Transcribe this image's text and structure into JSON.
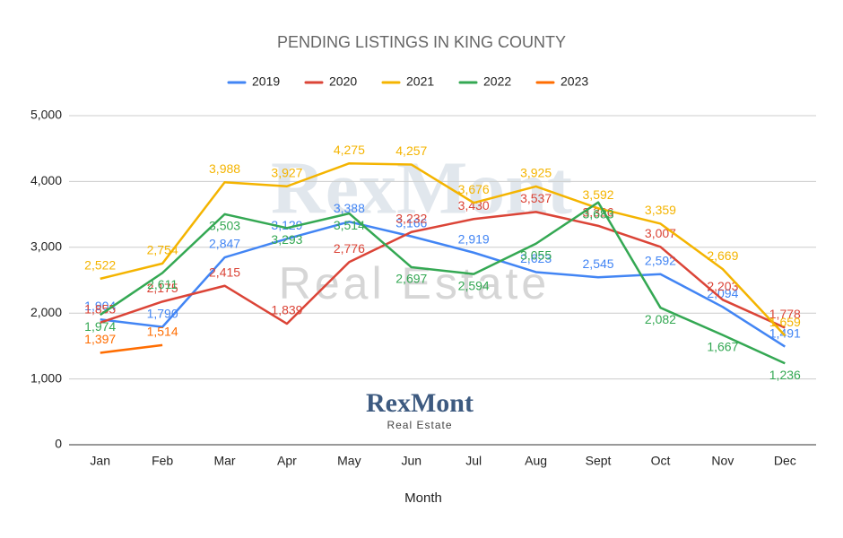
{
  "chart_data": {
    "type": "line",
    "title": "PENDING LISTINGS IN KING COUNTY",
    "x_label": "Month",
    "watermark": {
      "name": "RexMont",
      "tagline": "Real Estate"
    },
    "logo": {
      "name": "RexMont",
      "tagline": "Real Estate"
    },
    "categories": [
      "Jan",
      "Feb",
      "Mar",
      "Apr",
      "May",
      "Jun",
      "Jul",
      "Aug",
      "Sept",
      "Oct",
      "Nov",
      "Dec"
    ],
    "series": [
      {
        "name": "2019",
        "color": "#4285f4",
        "values": [
          1904,
          1790,
          2847,
          3129,
          3388,
          3166,
          2919,
          2623,
          2545,
          2592,
          2094,
          1491
        ],
        "value_labels": [
          "1,904",
          "1,790",
          "2,847",
          "3,129",
          "3,388",
          "3,166",
          "2,919",
          "2,623",
          "2,545",
          "2,592",
          "2,094",
          "1,491"
        ]
      },
      {
        "name": "2020",
        "color": "#db4437",
        "values": [
          1855,
          2175,
          2415,
          1839,
          2776,
          3232,
          3430,
          3537,
          3326,
          3007,
          2203,
          1778
        ],
        "value_labels": [
          "1,855",
          "2,175",
          "2,415",
          "1,839",
          "2,776",
          "3,232",
          "3,430",
          "3,537",
          "3,326",
          "3,007",
          "2,203",
          "1,778"
        ]
      },
      {
        "name": "2021",
        "color": "#f4b400",
        "values": [
          2522,
          2754,
          3988,
          3927,
          4275,
          4257,
          3676,
          3925,
          3592,
          3359,
          2669,
          1659
        ],
        "value_labels": [
          "2,522",
          "2,754",
          "3,988",
          "3,927",
          "4,275",
          "4,257",
          "3,676",
          "3,925",
          "3,592",
          "3,359",
          "2,669",
          "1,659"
        ]
      },
      {
        "name": "2022",
        "color": "#34a853",
        "values": [
          1974,
          2611,
          3503,
          3293,
          3514,
          2697,
          2594,
          3055,
          3683,
          2082,
          1667,
          1236
        ],
        "value_labels": [
          "1,974",
          "2,611",
          "3,503",
          "3,293",
          "3,514",
          "2,697",
          "2,594",
          "3,055",
          "3,683",
          "2,082",
          "1,667",
          "1,236"
        ]
      },
      {
        "name": "2023",
        "color": "#ff6d01",
        "values": [
          1397,
          1514,
          null,
          null,
          null,
          null,
          null,
          null,
          null,
          null,
          null,
          null
        ],
        "value_labels": [
          "1,397",
          "1,514",
          null,
          null,
          null,
          null,
          null,
          null,
          null,
          null,
          null,
          null
        ]
      }
    ],
    "ylim": [
      0,
      5000
    ],
    "yticks": [
      0,
      {
        "value": 1000,
        "label": "1,000"
      },
      {
        "value": 2000,
        "label": "2,000"
      },
      {
        "value": 3000,
        "label": "3,000"
      },
      {
        "value": 4000,
        "label": "4,000"
      },
      {
        "value": 5000,
        "label": "5,000"
      }
    ],
    "grid": true,
    "legend": "top"
  }
}
